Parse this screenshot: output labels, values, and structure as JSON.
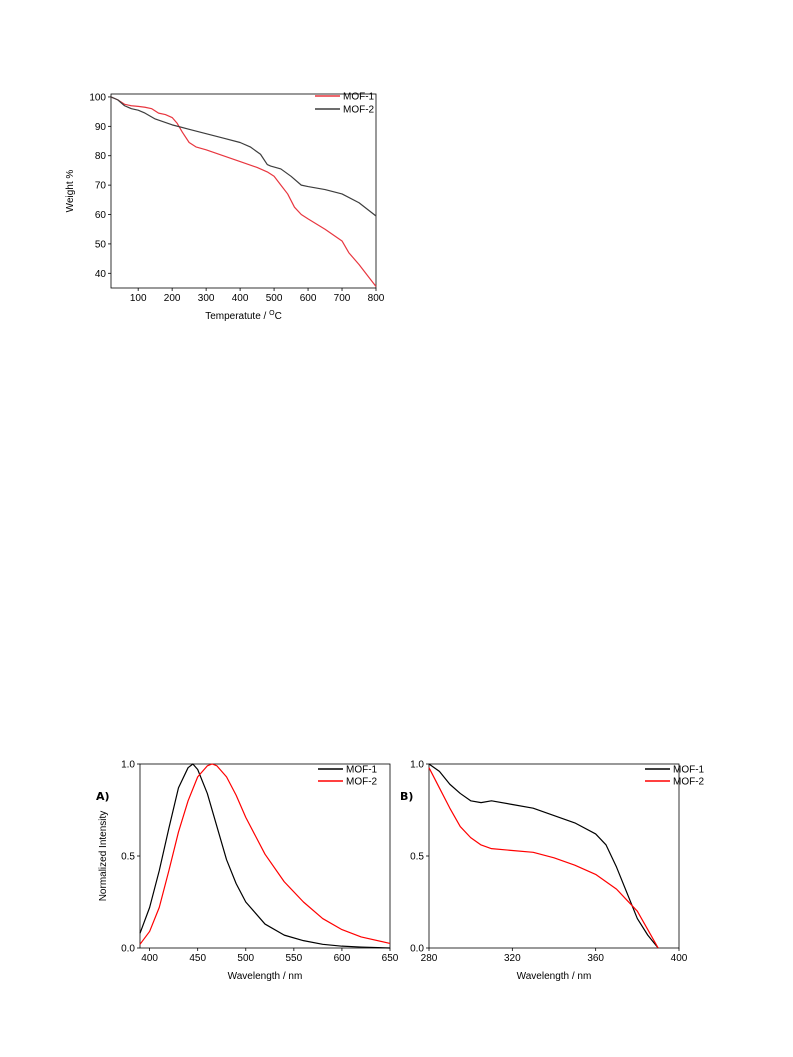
{
  "chart_data": [
    {
      "type": "line",
      "xlabel": "Temperatute / ",
      "xlabel_sup": "O",
      "xlabel_tail": "C",
      "ylabel": "Weight %",
      "xlim": [
        20,
        800
      ],
      "ylim": [
        35,
        101
      ],
      "xticks": [
        100,
        200,
        300,
        400,
        500,
        600,
        700,
        800
      ],
      "yticks": [
        40,
        50,
        60,
        70,
        80,
        90,
        100
      ],
      "legend_position": "top-right",
      "series": [
        {
          "name": "MOF-1",
          "color": "#e8363f",
          "x": [
            20,
            40,
            60,
            80,
            100,
            120,
            140,
            160,
            180,
            200,
            215,
            230,
            250,
            270,
            300,
            350,
            400,
            450,
            480,
            500,
            520,
            540,
            560,
            580,
            600,
            650,
            700,
            720,
            750,
            780,
            800
          ],
          "y": [
            100,
            99,
            97.5,
            97,
            96.8,
            96.5,
            96,
            94.5,
            94,
            93,
            91,
            88,
            84.5,
            83,
            82,
            80,
            78,
            76,
            74.5,
            73,
            70,
            67,
            62.5,
            60,
            58.5,
            55,
            51,
            47,
            43,
            38.5,
            35.5
          ]
        },
        {
          "name": "MOF-2",
          "color": "#3d3d3d",
          "x": [
            20,
            40,
            60,
            80,
            100,
            120,
            150,
            200,
            250,
            300,
            350,
            400,
            430,
            460,
            480,
            490,
            520,
            550,
            580,
            600,
            650,
            700,
            750,
            800
          ],
          "y": [
            100,
            99,
            97,
            96,
            95.5,
            94.5,
            92.5,
            90.5,
            89,
            87.5,
            86,
            84.5,
            83,
            80.5,
            77,
            76.5,
            75.5,
            73,
            70,
            69.5,
            68.5,
            67,
            64,
            59.5
          ]
        }
      ]
    },
    {
      "type": "line",
      "panel_label": "A)",
      "xlabel": "Wavelength / nm",
      "ylabel": "Normalized Intensity",
      "xlim": [
        390,
        650
      ],
      "ylim": [
        0,
        1.0
      ],
      "xticks": [
        400,
        450,
        500,
        550,
        600,
        650
      ],
      "yticks": [
        0.0,
        0.5,
        1.0
      ],
      "legend_position": "top-right",
      "series": [
        {
          "name": "MOF-1",
          "color": "#000000",
          "x": [
            390,
            400,
            410,
            420,
            430,
            440,
            445,
            450,
            460,
            470,
            480,
            490,
            500,
            520,
            540,
            560,
            580,
            600,
            620,
            650
          ],
          "y": [
            0.08,
            0.22,
            0.42,
            0.65,
            0.87,
            0.98,
            1.0,
            0.97,
            0.84,
            0.66,
            0.48,
            0.35,
            0.25,
            0.13,
            0.07,
            0.04,
            0.02,
            0.01,
            0.005,
            0.0
          ]
        },
        {
          "name": "MOF-2",
          "color": "#ff0000",
          "x": [
            390,
            400,
            410,
            420,
            430,
            440,
            450,
            460,
            465,
            470,
            480,
            490,
            500,
            520,
            540,
            560,
            580,
            600,
            620,
            650
          ],
          "y": [
            0.02,
            0.09,
            0.22,
            0.42,
            0.63,
            0.8,
            0.93,
            0.99,
            1.0,
            0.99,
            0.93,
            0.83,
            0.71,
            0.51,
            0.36,
            0.25,
            0.16,
            0.1,
            0.06,
            0.025
          ]
        }
      ]
    },
    {
      "type": "line",
      "panel_label": "B)",
      "xlabel": "Wavelength / nm",
      "ylabel": "",
      "xlim": [
        280,
        400
      ],
      "ylim": [
        0,
        1.0
      ],
      "xticks": [
        280,
        320,
        360,
        400
      ],
      "yticks": [
        0.0,
        0.5,
        1.0
      ],
      "legend_position": "top-right",
      "series": [
        {
          "name": "MOF-1",
          "color": "#000000",
          "x": [
            280,
            285,
            290,
            295,
            300,
            305,
            310,
            320,
            330,
            340,
            350,
            360,
            365,
            370,
            375,
            380,
            385,
            390
          ],
          "y": [
            1.0,
            0.96,
            0.89,
            0.84,
            0.8,
            0.79,
            0.8,
            0.78,
            0.76,
            0.72,
            0.68,
            0.62,
            0.56,
            0.44,
            0.3,
            0.16,
            0.07,
            0.0
          ]
        },
        {
          "name": "MOF-2",
          "color": "#ff0000",
          "x": [
            280,
            285,
            290,
            295,
            300,
            305,
            310,
            320,
            330,
            340,
            350,
            360,
            365,
            370,
            375,
            380,
            385,
            390
          ],
          "y": [
            0.98,
            0.87,
            0.76,
            0.66,
            0.6,
            0.56,
            0.54,
            0.53,
            0.52,
            0.49,
            0.45,
            0.4,
            0.36,
            0.32,
            0.26,
            0.2,
            0.1,
            0.0
          ]
        }
      ]
    }
  ]
}
